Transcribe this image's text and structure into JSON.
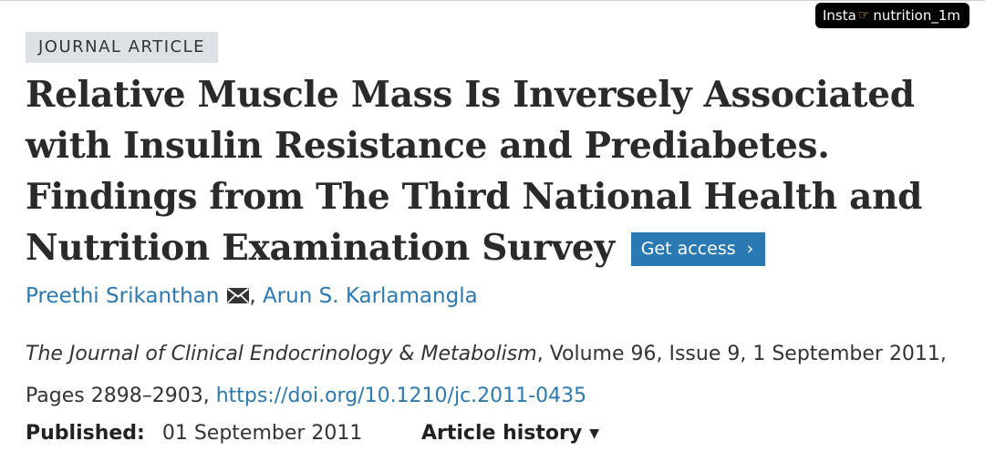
{
  "watermark": {
    "prefix": "Insta",
    "icon": "pointing-hand-icon",
    "handle": "nutrition_1m"
  },
  "article": {
    "type_label": "JOURNAL ARTICLE",
    "title": "Relative Muscle Mass Is Inversely Associated with Insulin Resistance and Prediabetes. Findings from The Third National Health and Nutrition Examination Survey",
    "get_access_label": "Get access",
    "get_access_icon": "chevron-right-icon",
    "authors": [
      {
        "name": "Preethi Srikanthan",
        "has_email": true,
        "email_icon": "envelope-icon"
      },
      {
        "name": "Arun S. Karlamangla",
        "has_email": false
      }
    ],
    "author_separator": ",",
    "citation": {
      "journal": "The Journal of Clinical Endocrinology & Metabolism",
      "details": ", Volume 96, Issue 9, 1 September 2011, Pages 2898–2903, ",
      "doi": "https://doi.org/10.1210/jc.2011-0435"
    },
    "published_label": "Published:",
    "published_date": "01 September 2011",
    "history_label": "Article history",
    "history_icon": "caret-down-icon"
  },
  "colors": {
    "link": "#2a79b2",
    "button_bg": "#2a79b2",
    "badge_bg": "#dde1e6",
    "text": "#333333"
  }
}
